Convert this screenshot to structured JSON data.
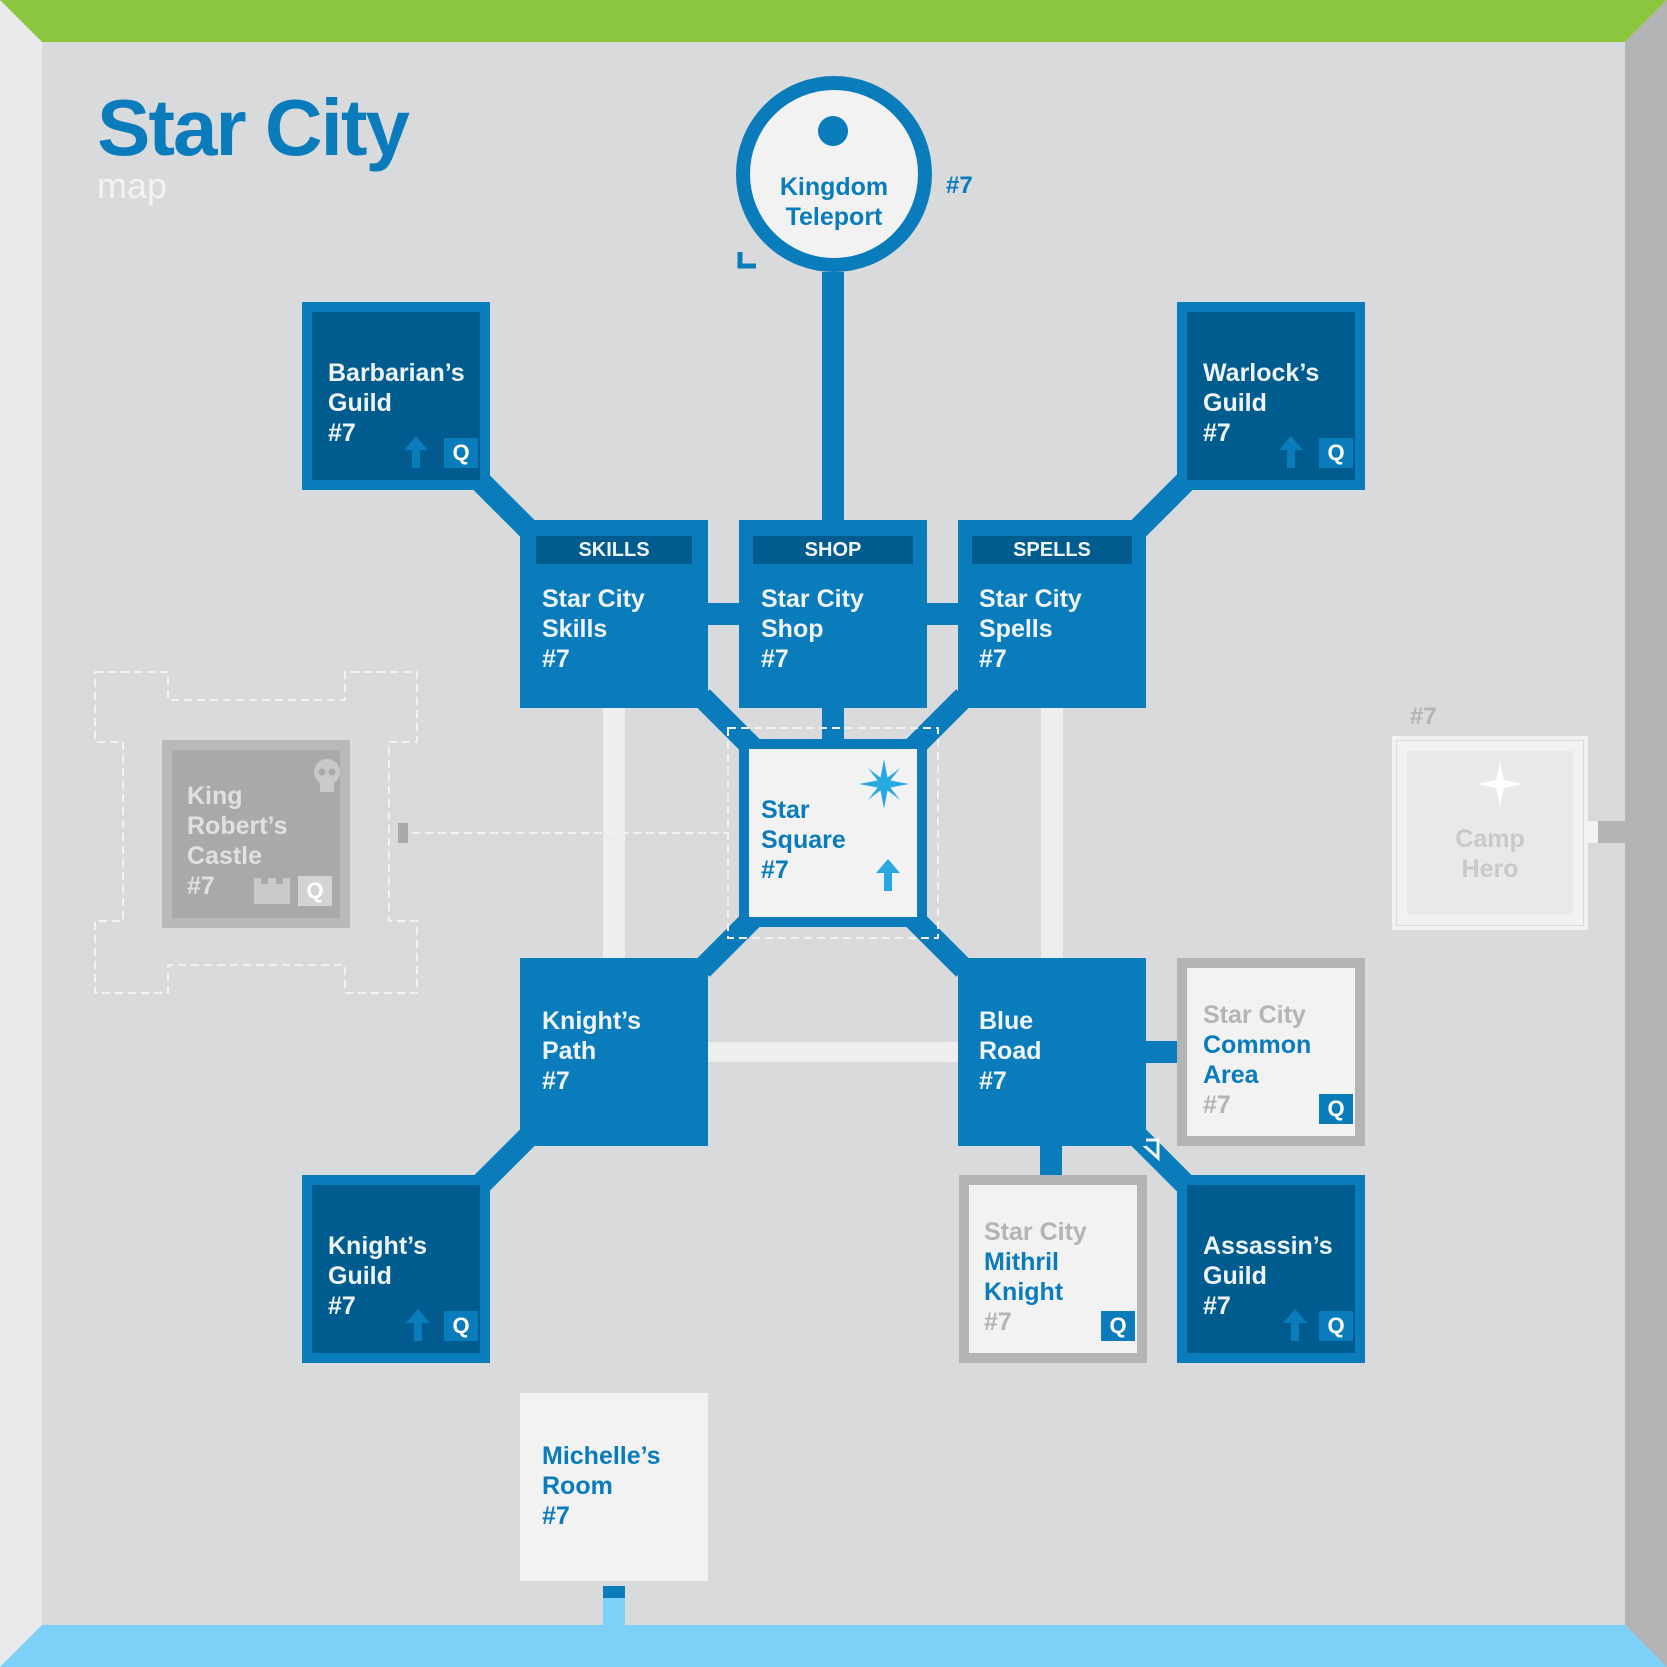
{
  "header": {
    "title": "Star City",
    "subtitle": "map"
  },
  "teleport": {
    "line1": "Kingdom",
    "line2": "Teleport",
    "level": "#7"
  },
  "rooms": {
    "barbarians_guild": {
      "lines": [
        "Barbarian’s",
        "Guild",
        "#7"
      ],
      "quest": "Q"
    },
    "warlocks_guild": {
      "lines": [
        "Warlock’s",
        "Guild",
        "#7"
      ],
      "quest": "Q"
    },
    "skills": {
      "tag": "SKILLS",
      "lines": [
        "Star City",
        "Skills",
        "#7"
      ]
    },
    "shop": {
      "tag": "SHOP",
      "lines": [
        "Star City",
        "Shop",
        "#7"
      ]
    },
    "spells": {
      "tag": "SPELLS",
      "lines": [
        "Star City",
        "Spells",
        "#7"
      ]
    },
    "star_square": {
      "lines": [
        "Star",
        "Square",
        "#7"
      ]
    },
    "king_roberts_castle": {
      "lines": [
        "King",
        "Robert’s",
        "Castle",
        "#7"
      ],
      "quest": "Q"
    },
    "camp_hero": {
      "level": "#7",
      "lines": [
        "Camp",
        "Hero"
      ]
    },
    "knights_path": {
      "lines": [
        "Knight’s",
        "Path",
        "#7"
      ]
    },
    "blue_road": {
      "lines": [
        "Blue",
        "Road",
        "#7"
      ]
    },
    "common_area": {
      "lines": [
        "Star City",
        "Common",
        "Area",
        "#7"
      ],
      "quest": "Q"
    },
    "knights_guild": {
      "lines": [
        "Knight’s",
        "Guild",
        "#7"
      ],
      "quest": "Q"
    },
    "mithril_knight": {
      "lines": [
        "Star City",
        "Mithril",
        "Knight",
        "#7"
      ],
      "quest": "Q"
    },
    "assassins_guild": {
      "lines": [
        "Assassin’s",
        "Guild",
        "#7"
      ],
      "quest": "Q"
    },
    "michelles_room": {
      "lines": [
        "Michelle’s",
        "Room",
        "#7"
      ]
    }
  },
  "icons": {
    "upgrade": "up-arrow-icon",
    "quest": "quest-icon",
    "star": "compass-star-icon",
    "skull": "skull-icon",
    "castle": "castle-icon",
    "teleport_pin": "teleport-pin-icon"
  },
  "colors": {
    "top_border": "#8dc63f",
    "bottom_border": "#7dd0f7",
    "primary_blue": "#0a7bbb",
    "dark_blue": "#005c8f",
    "floor": "#d9dadc"
  }
}
